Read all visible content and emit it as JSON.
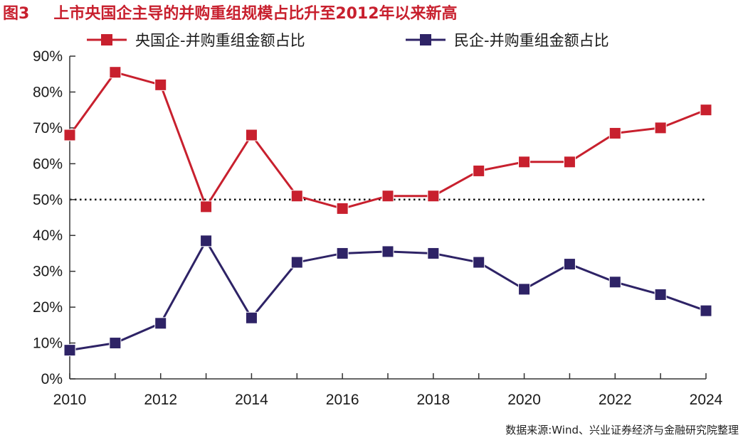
{
  "figure": {
    "label": "图3",
    "title": "上市央国企主导的并购重组规模占比升至2012年以来新高",
    "source": "数据来源:Wind、兴业证券经济与金融研究院整理"
  },
  "colors": {
    "soe": "#c8202e",
    "private": "#2e2366",
    "title": "#c8202e"
  },
  "chart_data": {
    "type": "line",
    "title": "上市央国企主导的并购重组规模占比升至2012年以来新高",
    "x": [
      2010,
      2011,
      2012,
      2013,
      2014,
      2015,
      2016,
      2017,
      2018,
      2019,
      2020,
      2021,
      2022,
      2023,
      2024
    ],
    "x_tick_labels": [
      "2010",
      "2012",
      "2014",
      "2016",
      "2018",
      "2020",
      "2022",
      "2024"
    ],
    "x_ticks": [
      2010,
      2012,
      2014,
      2016,
      2018,
      2020,
      2022,
      2024
    ],
    "y_tick_labels": [
      "0%",
      "10%",
      "20%",
      "30%",
      "40%",
      "50%",
      "60%",
      "70%",
      "80%",
      "90%"
    ],
    "y_ticks": [
      0,
      10,
      20,
      30,
      40,
      50,
      60,
      70,
      80,
      90
    ],
    "ylim": [
      0,
      90
    ],
    "xlim": [
      2010,
      2024
    ],
    "y_unit": "%",
    "reference_line": {
      "y": 50,
      "style": "dotted"
    },
    "legend_position": "top",
    "series": [
      {
        "name": "央国企-并购重组金额占比",
        "color": "#c8202e",
        "marker": "square",
        "values": [
          68,
          85.5,
          82,
          48,
          68,
          51,
          47.5,
          51,
          51,
          58,
          60.5,
          60.5,
          68.5,
          70,
          75
        ]
      },
      {
        "name": "民企-并购重组金额占比",
        "color": "#2e2366",
        "marker": "square",
        "values": [
          8,
          10,
          15.5,
          38.5,
          17,
          32.5,
          35,
          35.5,
          35,
          32.5,
          25,
          32,
          27,
          23.5,
          19
        ]
      }
    ]
  }
}
